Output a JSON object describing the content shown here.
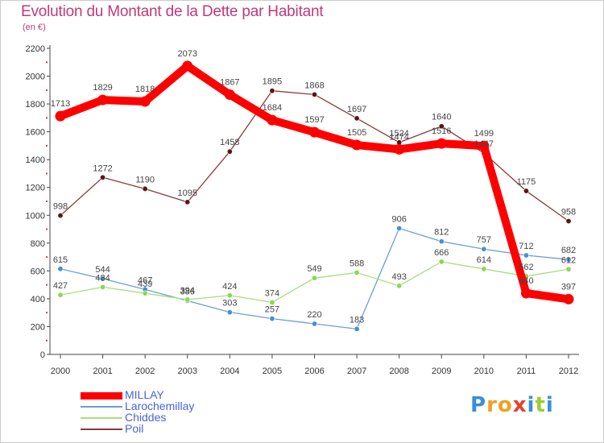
{
  "chart_data": {
    "type": "line",
    "title": "Evolution du Montant de la Dette par Habitant",
    "subtitle": "(en €)",
    "xlabel": "",
    "ylabel": "",
    "x": [
      "2000",
      "2001",
      "2002",
      "2003",
      "2004",
      "2005",
      "2006",
      "2007",
      "2008",
      "2009",
      "2010",
      "2011",
      "2012"
    ],
    "ylim": [
      0,
      2200
    ],
    "yticks": [
      0,
      200,
      400,
      600,
      800,
      1000,
      1200,
      1400,
      1600,
      1800,
      2000,
      2200
    ],
    "grid": false,
    "legend_position": "bottom-left",
    "series": [
      {
        "name": "MILLAY",
        "color": "#ff0000",
        "emphasis": "thick",
        "values": [
          1713,
          1829,
          1818,
          2073,
          1867,
          1684,
          1597,
          1505,
          1474,
          1516,
          1499,
          440,
          397
        ]
      },
      {
        "name": "Larochemillay",
        "color": "#6a9fd4",
        "marker": "#4a8fd0",
        "values": [
          615,
          544,
          467,
          386,
          303,
          257,
          220,
          183,
          906,
          812,
          757,
          712,
          682
        ]
      },
      {
        "name": "Chiddes",
        "color": "#a6df7a",
        "marker": "#8ed45a",
        "values": [
          427,
          484,
          439,
          394,
          424,
          374,
          549,
          588,
          493,
          666,
          614,
          562,
          612
        ]
      },
      {
        "name": "Poil",
        "color": "#8b3a3a",
        "marker": "#5a1515",
        "values": [
          998,
          1272,
          1190,
          1095,
          1458,
          1895,
          1868,
          1697,
          1524,
          1640,
          1447,
          1175,
          958
        ]
      }
    ]
  },
  "logo": {
    "letters": [
      "P",
      "r",
      "o",
      "x",
      "i",
      "t",
      "i"
    ],
    "colors": [
      "#3a8fd8",
      "#f0a020",
      "#f0a020",
      "#e8402a",
      "#3a8fd8",
      "#9acd32",
      "#3a8fd8"
    ]
  }
}
